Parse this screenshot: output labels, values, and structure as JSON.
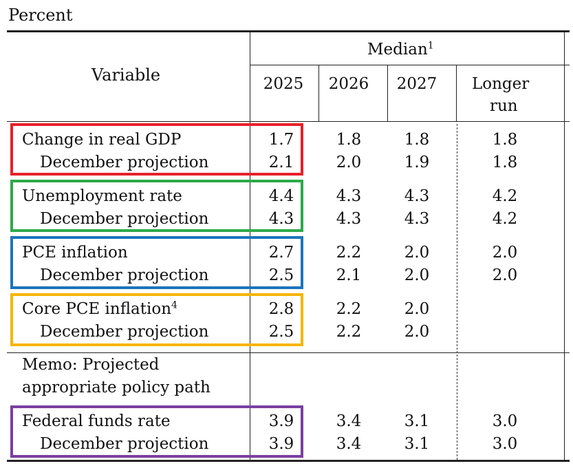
{
  "unit_label": "Percent",
  "header": {
    "variable": "Variable",
    "median": "Median",
    "median_note": "1",
    "years": [
      "2025",
      "2026",
      "2027"
    ],
    "longer_run_line1": "Longer",
    "longer_run_line2": "run"
  },
  "rows": [
    {
      "label": "Change in real GDP",
      "values": [
        "1.7",
        "1.8",
        "1.8",
        "1.8"
      ]
    },
    {
      "label": "December projection",
      "values": [
        "2.1",
        "2.0",
        "1.9",
        "1.8"
      ]
    },
    {
      "label": "Unemployment rate",
      "values": [
        "4.4",
        "4.3",
        "4.3",
        "4.2"
      ]
    },
    {
      "label": "December projection",
      "values": [
        "4.3",
        "4.3",
        "4.3",
        "4.2"
      ]
    },
    {
      "label": "PCE inflation",
      "values": [
        "2.7",
        "2.2",
        "2.0",
        "2.0"
      ]
    },
    {
      "label": "December projection",
      "values": [
        "2.5",
        "2.1",
        "2.0",
        "2.0"
      ]
    },
    {
      "label": "Core PCE inflation",
      "note": "4",
      "values": [
        "2.8",
        "2.2",
        "2.0",
        ""
      ]
    },
    {
      "label": "December projection",
      "values": [
        "2.5",
        "2.2",
        "2.0",
        ""
      ]
    },
    {
      "label": "Federal funds rate",
      "values": [
        "3.9",
        "3.4",
        "3.1",
        "3.0"
      ]
    },
    {
      "label": "December projection",
      "values": [
        "3.9",
        "3.4",
        "3.1",
        "3.0"
      ]
    }
  ],
  "memo_line1": "Memo: Projected",
  "memo_line2": "appropriate policy path",
  "highlight_colors": {
    "gdp": "#e8202a",
    "unemployment": "#2eaa4a",
    "pce": "#1c75bc",
    "core_pce": "#f7b500",
    "fed_funds": "#7b3fa0"
  }
}
